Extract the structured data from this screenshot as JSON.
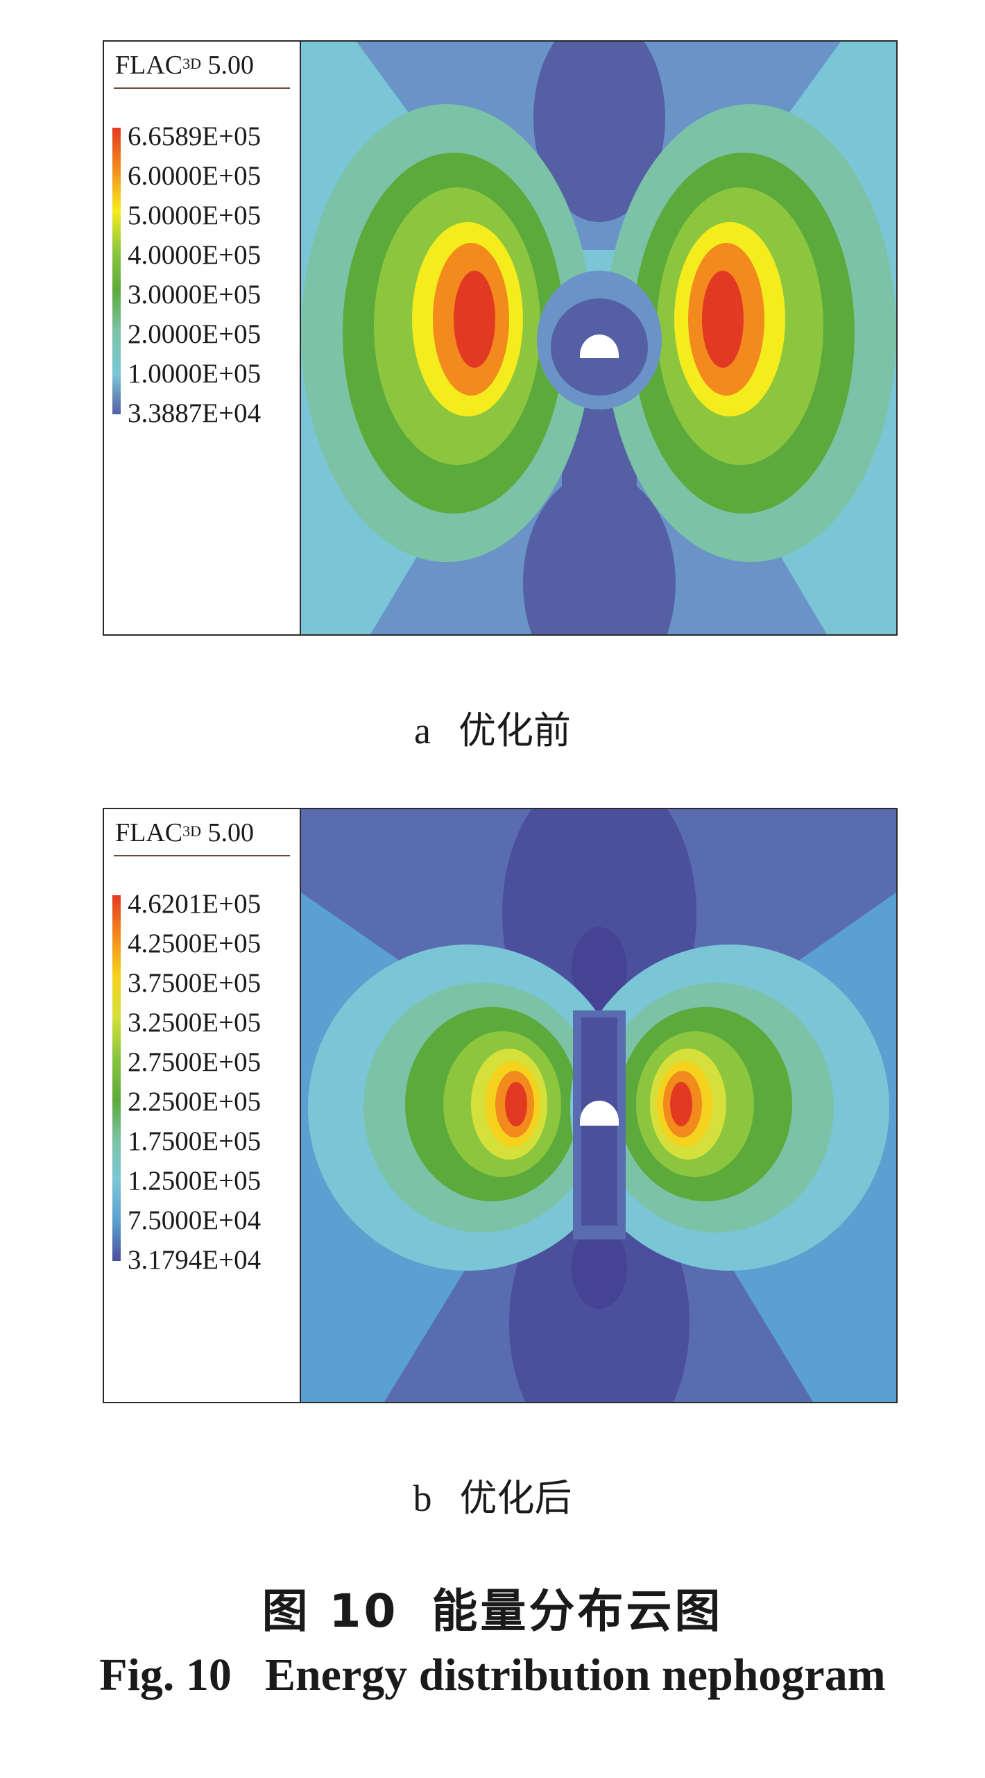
{
  "panels": [
    {
      "software": "FLAC",
      "software_sup": "3D",
      "version": "5.00",
      "legend_values": [
        "6.6589E+05",
        "6.0000E+05",
        "5.0000E+05",
        "4.0000E+05",
        "3.0000E+05",
        "2.0000E+05",
        "1.0000E+05",
        "3.3887E+04"
      ],
      "legend_colors": [
        "#e23a22",
        "#f28a1e",
        "#f5ec1e",
        "#8cc63f",
        "#5caa3c",
        "#7cc2a6",
        "#7ac6d6",
        "#5560a4"
      ],
      "label": "a",
      "caption": "优化前"
    },
    {
      "software": "FLAC",
      "software_sup": "3D",
      "version": "5.00",
      "legend_values": [
        "4.6201E+05",
        "4.2500E+05",
        "3.7500E+05",
        "3.2500E+05",
        "2.7500E+05",
        "2.2500E+05",
        "1.7500E+05",
        "1.2500E+05",
        "7.5000E+04",
        "3.1794E+04"
      ],
      "legend_colors": [
        "#e23a22",
        "#f28a1e",
        "#f5d21e",
        "#d6e03a",
        "#8cc63f",
        "#5caa3c",
        "#7cc2a6",
        "#7ac6d6",
        "#5aa0d0",
        "#4b4f9c"
      ],
      "label": "b",
      "caption": "优化后"
    }
  ],
  "figure": {
    "caption_cn_num": "图 10",
    "caption_cn_text": "能量分布云图",
    "caption_en_num": "Fig.  10",
    "caption_en_text": "Energy distribution nephogram"
  }
}
